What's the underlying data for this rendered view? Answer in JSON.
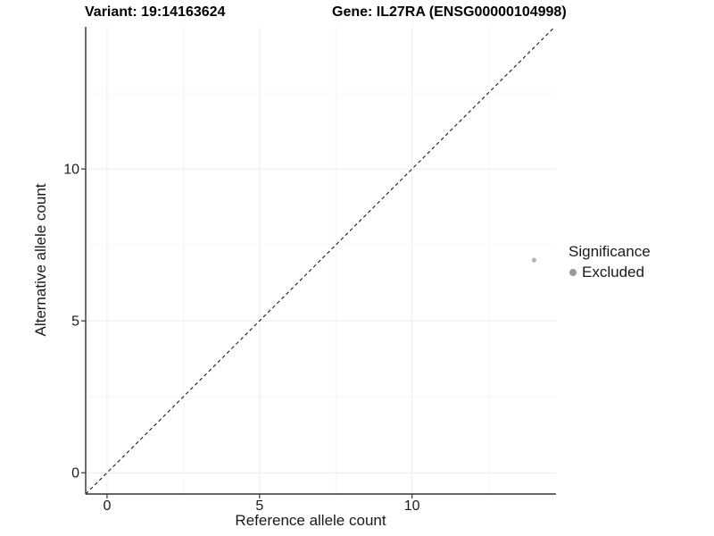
{
  "chart_data": {
    "type": "scatter",
    "titles": {
      "left": "Variant: 19:14163624",
      "right": "Gene: IL27RA (ENSG00000104998)"
    },
    "xlabel": "Reference allele count",
    "ylabel": "Alternative allele count",
    "xlim": [
      -0.7,
      14.72
    ],
    "ylim": [
      -0.7,
      14.68
    ],
    "x_ticks": [
      0,
      5,
      10
    ],
    "y_ticks": [
      0,
      5,
      10
    ],
    "x_minor_ticks": [
      2.5,
      7.5,
      12.5
    ],
    "y_minor_ticks": [
      2.5,
      7.5,
      12.5
    ],
    "grid": true,
    "legend": {
      "position": "right",
      "title": "Significance",
      "entries": [
        {
          "label": "Excluded",
          "marker_color": "#999999"
        }
      ]
    },
    "identity_line": {
      "type": "identity",
      "style": "dashed",
      "color": "#1a1a1a",
      "from": -0.7,
      "to": 14.68
    },
    "series": [
      {
        "name": "Excluded",
        "marker_color": "#b5b5b5",
        "point_radius": 2.6,
        "points": [
          {
            "x": 14,
            "y": 7
          }
        ]
      }
    ],
    "colors": {
      "background": "#ffffff",
      "axis_line": "#333333",
      "grid_major": "#ececec",
      "grid_minor": "#f6f6f6",
      "tick_text": "#1a1a1a"
    }
  }
}
